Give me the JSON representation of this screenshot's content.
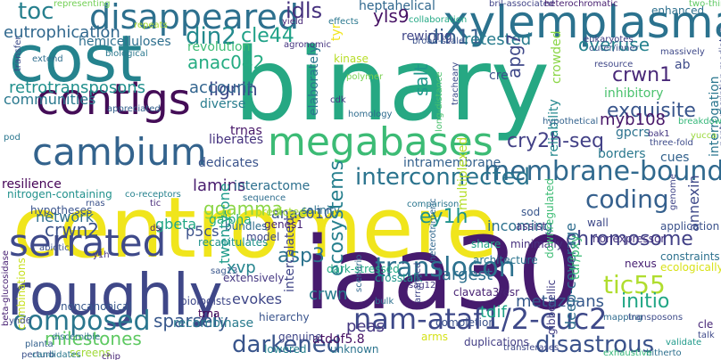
{
  "words": [
    {
      "text": "centromere",
      "color": "#f0e51c",
      "rot": 0
    },
    {
      "text": "binary",
      "color": "#26a883",
      "rot": 0
    },
    {
      "text": "iaa30",
      "color": "#461b6e",
      "rot": 0
    },
    {
      "text": "cost",
      "color": "#25838e",
      "rot": 0
    },
    {
      "text": "roughly",
      "color": "#3f4788",
      "rot": 0
    },
    {
      "text": "xylemplasma",
      "color": "#2b728e",
      "rot": 0
    },
    {
      "text": "megabases",
      "color": "#3cbb75",
      "rot": 0
    },
    {
      "text": "contigs",
      "color": "#440d57",
      "rot": 0
    },
    {
      "text": "cambium",
      "color": "#33638d",
      "rot": 0
    },
    {
      "text": "serrated",
      "color": "#3f4a8a",
      "rot": 0
    },
    {
      "text": "disappeared",
      "color": "#2d708e",
      "rot": 0
    },
    {
      "text": "nam-ataf1/2-cuc2",
      "color": "#3e4989",
      "rot": 0
    },
    {
      "text": "membrane-bound",
      "color": "#30698e",
      "rot": 0
    },
    {
      "text": "interconnected",
      "color": "#2b748e",
      "rot": 0
    },
    {
      "text": "translocon",
      "color": "#2c718e",
      "rot": 0
    },
    {
      "text": "composed",
      "color": "#2a768e",
      "rot": 0
    },
    {
      "text": "coding",
      "color": "#35608d",
      "rot": 0
    },
    {
      "text": "tic55",
      "color": "#b0dd2f",
      "rot": 0
    },
    {
      "text": "darkened",
      "color": "#39558c",
      "rot": 0
    },
    {
      "text": "disastrous",
      "color": "#3b528b",
      "rot": 0
    },
    {
      "text": "cry2h-seq",
      "color": "#424086",
      "rot": 0
    },
    {
      "text": "chromosome",
      "color": "#424186",
      "rot": 0
    },
    {
      "text": "eutrophication",
      "color": "#31688e",
      "rot": 0
    },
    {
      "text": "retrotransposons",
      "color": "#21908d",
      "rot": 0
    },
    {
      "text": "din2",
      "color": "#238a8d",
      "rot": 0
    },
    {
      "text": "din11",
      "color": "#355f8d",
      "rot": 0
    },
    {
      "text": "cle44",
      "color": "#1fa187",
      "rot": 0
    },
    {
      "text": "toc",
      "color": "#27808e",
      "rot": 0
    },
    {
      "text": "idls",
      "color": "#46327e",
      "rot": 0
    },
    {
      "text": "anac042",
      "color": "#25ac82",
      "rot": 0
    },
    {
      "text": "lignin",
      "color": "#3e4a89",
      "rot": 0
    },
    {
      "text": "ecosystems",
      "color": "#27808e",
      "rot": 90
    },
    {
      "text": "asp3",
      "color": "#2c738e",
      "rot": 0
    },
    {
      "text": "ey1h",
      "color": "#20928c",
      "rot": 0
    },
    {
      "text": "exquisite",
      "color": "#39558c",
      "rot": 0
    },
    {
      "text": "retested",
      "color": "#287c8e",
      "rot": 0
    },
    {
      "text": "overuse",
      "color": "#26828e",
      "rot": 0
    },
    {
      "text": "crwn1",
      "color": "#482878",
      "rot": 0
    },
    {
      "text": "yls9",
      "color": "#471365",
      "rot": 0
    },
    {
      "text": "milestones",
      "color": "#5ec962",
      "rot": 0
    },
    {
      "text": "sparsely",
      "color": "#38588c",
      "rot": 0
    },
    {
      "text": "initio",
      "color": "#21a685",
      "rot": 0
    },
    {
      "text": "ggamma",
      "color": "#8bd646",
      "rot": 0
    },
    {
      "text": "crwn2",
      "color": "#3b518b",
      "rot": 0
    },
    {
      "text": "largest",
      "color": "#2d708e",
      "rot": 0
    },
    {
      "text": "metazoans",
      "color": "#375a8c",
      "rot": 0
    },
    {
      "text": "account",
      "color": "#32648e",
      "rot": 0
    },
    {
      "text": "communities",
      "color": "#29788e",
      "rot": 0
    },
    {
      "text": "anac010",
      "color": "#39568c",
      "rot": 0
    },
    {
      "text": "xvp",
      "color": "#25848e",
      "rot": 0
    },
    {
      "text": "lamins",
      "color": "#481c6e",
      "rot": 0
    },
    {
      "text": "salt",
      "color": "#1f988b",
      "rot": 90
    },
    {
      "text": "apg7",
      "color": "#3f4889",
      "rot": 90
    },
    {
      "text": "crwn",
      "color": "#287d8e",
      "rot": 0
    },
    {
      "text": "tdif",
      "color": "#1fa287",
      "rot": 0
    },
    {
      "text": "peas",
      "color": "#453781",
      "rot": 0
    },
    {
      "text": "annexin",
      "color": "#3e4989",
      "rot": 90
    },
    {
      "text": "deep-coverage",
      "color": "#2e6d8e",
      "rot": 90
    },
    {
      "text": "reliability",
      "color": "#23888e",
      "rot": 90
    },
    {
      "text": "myb108",
      "color": "#481769",
      "rot": 0
    },
    {
      "text": "network",
      "color": "#2e6e8e",
      "rot": 0
    },
    {
      "text": "gbeta",
      "color": "#22a785",
      "rot": 0
    },
    {
      "text": "p5cs",
      "color": "#3b518b",
      "rot": 0
    },
    {
      "text": "twenty-one",
      "color": "#1e9b8a",
      "rot": 90
    },
    {
      "text": "evokes",
      "color": "#3f4788",
      "rot": 0
    },
    {
      "text": "incoming",
      "color": "#2c718e",
      "rot": 0
    },
    {
      "text": "intercalated",
      "color": "#404588",
      "rot": 90
    },
    {
      "text": "atdof5.8",
      "color": "#471063",
      "rot": 0
    },
    {
      "text": "revolution",
      "color": "#3dbc74",
      "rot": 0
    },
    {
      "text": "hemicelluloses",
      "color": "#2e6f8e",
      "rot": 0
    },
    {
      "text": "elaborately",
      "color": "#2b758e",
      "rot": 90
    },
    {
      "text": "inhibitory",
      "color": "#4ac16d",
      "rot": 0
    },
    {
      "text": "interactome",
      "color": "#2d708e",
      "rot": 0
    },
    {
      "text": "intramembrane",
      "color": "#34618d",
      "rot": 0
    },
    {
      "text": "liberates",
      "color": "#46337f",
      "rot": 0
    },
    {
      "text": "dedicates",
      "color": "#3a538b",
      "rot": 0
    },
    {
      "text": "resilience",
      "color": "#440256",
      "rot": 0
    },
    {
      "text": "trnas",
      "color": "#481769",
      "rot": 0
    },
    {
      "text": "cues",
      "color": "#33628d",
      "rot": 0
    },
    {
      "text": "borders",
      "color": "#2a788e",
      "rot": 0
    },
    {
      "text": "gpcrs",
      "color": "#2c728e",
      "rot": 0
    },
    {
      "text": "multiplexed",
      "color": "#b5de2b",
      "rot": 90
    },
    {
      "text": "rewiring",
      "color": "#404688",
      "rot": 0
    },
    {
      "text": "heptahelical",
      "color": "#31688e",
      "rot": 0
    },
    {
      "text": "crowded",
      "color": "#8bd646",
      "rot": 90
    },
    {
      "text": "gibberellic",
      "color": "#433e85",
      "rot": 90
    },
    {
      "text": "tdr/pxy",
      "color": "#3aba76",
      "rot": 90
    },
    {
      "text": "recombinase",
      "color": "#297b8e",
      "rot": 0
    },
    {
      "text": "cre",
      "color": "#3b528b",
      "rot": 0
    },
    {
      "text": "galpha",
      "color": "#26ad81",
      "rot": 0
    },
    {
      "text": "diverse",
      "color": "#287d8e",
      "rot": 0
    },
    {
      "text": "combinations",
      "color": "#c8e020",
      "rot": 90
    },
    {
      "text": "interrogation",
      "color": "#2a768e",
      "rot": 90
    },
    {
      "text": "hypotheses",
      "color": "#3a548c",
      "rot": 0
    },
    {
      "text": "ab",
      "color": "#3e4c8a",
      "rot": 0
    },
    {
      "text": "clavata3/esr",
      "color": "#482374",
      "rot": 0
    },
    {
      "text": "tyr",
      "color": "#f1e51d",
      "rot": 90
    },
    {
      "text": "kinase",
      "color": "#b8de29",
      "rot": 0
    },
    {
      "text": "genuine",
      "color": "#404688",
      "rot": 0
    },
    {
      "text": "assist",
      "color": "#453781",
      "rot": 0
    },
    {
      "text": "nitrogen-containing",
      "color": "#21918c",
      "rot": 0
    },
    {
      "text": "noncanonical",
      "color": "#38588c",
      "rot": 0
    },
    {
      "text": "biologists",
      "color": "#3f4889",
      "rot": 0
    },
    {
      "text": "trna",
      "color": "#440154",
      "rot": 0
    },
    {
      "text": "recapitulates",
      "color": "#20928c",
      "rot": 0
    },
    {
      "text": "bundles",
      "color": "#2e6e8e",
      "rot": 0
    },
    {
      "text": "genes1",
      "color": "#482576",
      "rot": 0
    },
    {
      "text": "model",
      "color": "#3f4889",
      "rot": 0
    },
    {
      "text": "predicted",
      "color": "#a2da37",
      "rot": 0
    },
    {
      "text": "salinity",
      "color": "#2c738e",
      "rot": 0
    },
    {
      "text": "comparison",
      "color": "#2a768e",
      "rot": 0
    },
    {
      "text": "minimally",
      "color": "#46307e",
      "rot": 0
    },
    {
      "text": "share",
      "color": "#20a486",
      "rot": 0
    },
    {
      "text": "sod",
      "color": "#39568c",
      "rot": 0
    },
    {
      "text": "wall",
      "color": "#3e4989",
      "rot": 0
    },
    {
      "text": "application",
      "color": "#3b528b",
      "rot": 0
    },
    {
      "text": "nonexpressor",
      "color": "#463480",
      "rot": 0
    },
    {
      "text": "nexus",
      "color": "#482173",
      "rot": 0
    },
    {
      "text": "constraints",
      "color": "#2d718e",
      "rot": 0
    },
    {
      "text": "ecologically",
      "color": "#d8e219",
      "rot": 0
    },
    {
      "text": "architecture",
      "color": "#2b748e",
      "rot": 0
    },
    {
      "text": "dark-stressed",
      "color": "#22a884",
      "rot": 0
    },
    {
      "text": "downregulated",
      "color": "#3dbc74",
      "rot": 90
    },
    {
      "text": "crosstalk",
      "color": "#1f968b",
      "rot": 0
    },
    {
      "text": "hierarchy",
      "color": "#3a548c",
      "rot": 0
    },
    {
      "text": "extensively",
      "color": "#453882",
      "rot": 0
    },
    {
      "text": "duplications",
      "color": "#433e85",
      "rot": 0
    },
    {
      "text": "completion",
      "color": "#3b528b",
      "rot": 0
    },
    {
      "text": "unknown",
      "color": "#2b748e",
      "rot": 0
    },
    {
      "text": "lowered",
      "color": "#26828e",
      "rot": 0
    },
    {
      "text": "screens",
      "color": "#a0da39",
      "rot": 0
    },
    {
      "text": "arms",
      "color": "#d5e21a",
      "rot": 0
    },
    {
      "text": "enhanced",
      "color": "#2d708e",
      "rot": 0
    },
    {
      "text": "two-thirds",
      "color": "#5ec962",
      "rot": 0
    },
    {
      "text": "massively",
      "color": "#3e4989",
      "rot": 0
    },
    {
      "text": "outer/inner",
      "color": "#3b518b",
      "rot": 0
    },
    {
      "text": "eukaryotes",
      "color": "#424186",
      "rot": 0
    },
    {
      "text": "bril-associated",
      "color": "#414487",
      "rot": 0
    },
    {
      "text": "heterochromatic",
      "color": "#482071",
      "rot": 0
    },
    {
      "text": "collaboration",
      "color": "#22a884",
      "rot": 0
    },
    {
      "text": "broad-scale",
      "color": "#3b518b",
      "rot": 0
    },
    {
      "text": "effects",
      "color": "#2a778e",
      "rot": 0
    },
    {
      "text": "yield",
      "color": "#482878",
      "rot": 0
    },
    {
      "text": "representing",
      "color": "#73d055",
      "rot": 0
    },
    {
      "text": "repeats",
      "color": "#addc30",
      "rot": 0
    },
    {
      "text": "biological",
      "color": "#2a788e",
      "rot": 0
    },
    {
      "text": "agronomic",
      "color": "#463480",
      "rot": 0
    },
    {
      "text": "transfer",
      "color": "#3e4c8a",
      "rot": 90
    },
    {
      "text": "extend",
      "color": "#2e6e8e",
      "rot": 0
    },
    {
      "text": "appreciated",
      "color": "#34618d",
      "rot": 0
    },
    {
      "text": "polymer",
      "color": "#7ad151",
      "rot": 0
    },
    {
      "text": "cdk",
      "color": "#453581",
      "rot": 0
    },
    {
      "text": "homology",
      "color": "#2f6c8e",
      "rot": 0
    },
    {
      "text": "long-distance",
      "color": "#4ac16d",
      "rot": 90
    },
    {
      "text": "tracheary",
      "color": "#3d4d8a",
      "rot": 90
    },
    {
      "text": "hypothetical",
      "color": "#33628d",
      "rot": 0
    },
    {
      "text": "resource",
      "color": "#3f4788",
      "rot": 0
    },
    {
      "text": "bak1",
      "color": "#453882",
      "rot": 0
    },
    {
      "text": "three-fold",
      "color": "#3e4c8a",
      "rot": 0
    },
    {
      "text": "yucca",
      "color": "#9bd93c",
      "rot": 0
    },
    {
      "text": "nontranscription-mediated",
      "color": "#3e4a89",
      "rot": 90
    },
    {
      "text": "breakdown",
      "color": "#35b779",
      "rot": 0
    },
    {
      "text": "co-receptors",
      "color": "#26828e",
      "rot": 0
    },
    {
      "text": "rnas",
      "color": "#3b528b",
      "rot": 0
    },
    {
      "text": "tic",
      "color": "#472c7a",
      "rot": 0
    },
    {
      "text": "ds",
      "color": "#482374",
      "rot": 0
    },
    {
      "text": "sequence",
      "color": "#2e6e8e",
      "rot": 0
    },
    {
      "text": "abiotic",
      "color": "#3c508b",
      "rot": 0
    },
    {
      "text": "y1h",
      "color": "#46327e",
      "rot": 0
    },
    {
      "text": "sag13",
      "color": "#39568c",
      "rot": 0
    },
    {
      "text": "sag12",
      "color": "#453882",
      "rot": 0
    },
    {
      "text": "scenario",
      "color": "#31688e",
      "rot": 90
    },
    {
      "text": "bulk",
      "color": "#2d708e",
      "rot": 0
    },
    {
      "text": "heterotrimeric",
      "color": "#31688e",
      "rot": 90
    },
    {
      "text": "genome",
      "color": "#404588",
      "rot": 90
    },
    {
      "text": "arranged",
      "color": "#3f4788",
      "rot": 90
    },
    {
      "text": "mapping",
      "color": "#2f6b8e",
      "rot": 0
    },
    {
      "text": "transposons",
      "color": "#3e4c8a",
      "rot": 0
    },
    {
      "text": "cle",
      "color": "#482878",
      "rot": 0
    },
    {
      "text": "validate",
      "color": "#1f9a8a",
      "rot": 0
    },
    {
      "text": "hitherto",
      "color": "#2d708e",
      "rot": 0
    },
    {
      "text": "exhaustive",
      "color": "#35b779",
      "rot": 0
    },
    {
      "text": "transferases",
      "color": "#3f4788",
      "rot": 0
    },
    {
      "text": "ynd6",
      "color": "#3e4c8a",
      "rot": 0
    },
    {
      "text": "discernible",
      "color": "#2d708e",
      "rot": 0
    },
    {
      "text": "perturb",
      "color": "#3b518b",
      "rot": 0
    },
    {
      "text": "candidates",
      "color": "#2a788e",
      "rot": 0
    },
    {
      "text": "beta-glucosidase",
      "color": "#482173",
      "rot": 90
    },
    {
      "text": "planta",
      "color": "#34618d",
      "rot": 0
    },
    {
      "text": "chip",
      "color": "#482576",
      "rot": 0
    },
    {
      "text": "talk",
      "color": "#3e4989",
      "rot": 0
    },
    {
      "text": "pod",
      "color": "#2a768e",
      "rot": 0
    }
  ]
}
